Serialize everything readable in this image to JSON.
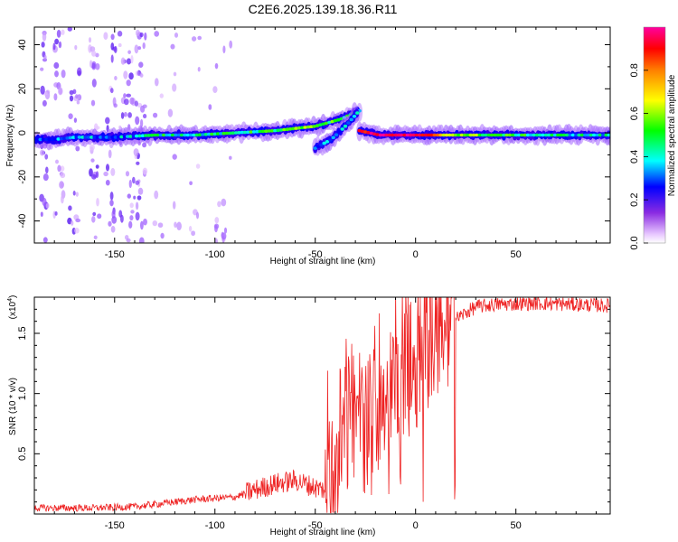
{
  "title": "C2E6.2025.139.18.36.R11",
  "colors": {
    "snr_line": "#ee2222",
    "frame": "#000000",
    "background": "#ffffff"
  },
  "chart_data": [
    {
      "type": "heatmap",
      "name": "spectrogram",
      "xlabel": "Height of straight line (km)",
      "ylabel": "Frequency (Hz)",
      "xlim": [
        -190,
        97
      ],
      "ylim": [
        -50,
        48
      ],
      "x_ticks": [
        -150,
        -100,
        -50,
        0,
        50
      ],
      "x_tick_labels": [
        "-150",
        "-100",
        "-50",
        "0",
        "50"
      ],
      "y_ticks": [
        -40,
        -20,
        0,
        20,
        40
      ],
      "y_tick_labels": [
        "-40",
        "-20",
        "0",
        "20",
        "40"
      ],
      "colormap": [
        "#e8c8ff",
        "#a060ff",
        "#4400ee",
        "#0000ff",
        "#00ffff",
        "#00ff00",
        "#ffff00",
        "#ff0000",
        "#ff00a0"
      ],
      "colorbar": {
        "label": "Normalized spectral amplitude",
        "range": [
          0.0,
          1.0
        ],
        "ticks": [
          0.0,
          0.2,
          0.4,
          0.6,
          0.8
        ],
        "tick_labels": [
          "0.0",
          "0.2",
          "0.4",
          "0.6",
          "0.8"
        ]
      },
      "ridges": [
        {
          "description": "main",
          "points": [
            {
              "x": -190,
              "y": -3,
              "amp": 0.25
            },
            {
              "x": -180,
              "y": -3,
              "amp": 0.3
            },
            {
              "x": -170,
              "y": -2,
              "amp": 0.35
            },
            {
              "x": -150,
              "y": -2,
              "amp": 0.35
            },
            {
              "x": -130,
              "y": -1,
              "amp": 0.45
            },
            {
              "x": -110,
              "y": -1,
              "amp": 0.45
            },
            {
              "x": -90,
              "y": 0,
              "amp": 0.45
            },
            {
              "x": -70,
              "y": 1,
              "amp": 0.5
            },
            {
              "x": -50,
              "y": 3,
              "amp": 0.55
            },
            {
              "x": -38,
              "y": 6,
              "amp": 0.5
            },
            {
              "x": -28,
              "y": 10,
              "amp": 0.45
            }
          ]
        },
        {
          "description": "branch",
          "points": [
            {
              "x": -50,
              "y": -7,
              "amp": 0.3
            },
            {
              "x": -42,
              "y": -3,
              "amp": 0.35
            },
            {
              "x": -35,
              "y": 3,
              "amp": 0.35
            },
            {
              "x": -29,
              "y": 9,
              "amp": 0.35
            }
          ]
        },
        {
          "description": "tail",
          "points": [
            {
              "x": -28,
              "y": 1,
              "amp": 0.85
            },
            {
              "x": -18,
              "y": -1,
              "amp": 0.95
            },
            {
              "x": 0,
              "y": -1,
              "amp": 0.9
            },
            {
              "x": 10,
              "y": -1,
              "amp": 0.7
            },
            {
              "x": 30,
              "y": -1,
              "amp": 0.55
            },
            {
              "x": 60,
              "y": -1,
              "amp": 0.45
            },
            {
              "x": 97,
              "y": -1,
              "amp": 0.4
            }
          ]
        }
      ]
    },
    {
      "type": "line",
      "name": "snr",
      "xlabel": "Height of straight line (km)",
      "ylabel": "SNR (10 * v/v)",
      "y_scale_label": "(x10",
      "y_scale_exponent": "4",
      "xlim": [
        -190,
        97
      ],
      "ylim": [
        0,
        1.8
      ],
      "x_ticks": [
        -150,
        -100,
        -50,
        0,
        50
      ],
      "x_tick_labels": [
        "-150",
        "-100",
        "-50",
        "0",
        "50"
      ],
      "y_ticks": [
        0.5,
        1.0,
        1.5
      ],
      "y_tick_labels": [
        "0.5",
        "1.0",
        "1.5"
      ],
      "envelope": [
        {
          "x": -190,
          "y": 0.05
        },
        {
          "x": -160,
          "y": 0.05
        },
        {
          "x": -140,
          "y": 0.06
        },
        {
          "x": -130,
          "y": 0.08
        },
        {
          "x": -120,
          "y": 0.1
        },
        {
          "x": -110,
          "y": 0.12
        },
        {
          "x": -100,
          "y": 0.13
        },
        {
          "x": -90,
          "y": 0.14
        },
        {
          "x": -80,
          "y": 0.2
        },
        {
          "x": -70,
          "y": 0.25
        },
        {
          "x": -60,
          "y": 0.28
        },
        {
          "x": -50,
          "y": 0.22
        },
        {
          "x": -45,
          "y": 0.2
        },
        {
          "x": -40,
          "y": 0.4
        },
        {
          "x": -35,
          "y": 0.7
        },
        {
          "x": -30,
          "y": 0.85
        },
        {
          "x": -25,
          "y": 0.7
        },
        {
          "x": -20,
          "y": 0.95
        },
        {
          "x": -10,
          "y": 1.05
        },
        {
          "x": 0,
          "y": 1.25
        },
        {
          "x": 10,
          "y": 1.5
        },
        {
          "x": 20,
          "y": 1.62
        },
        {
          "x": 30,
          "y": 1.72
        },
        {
          "x": 40,
          "y": 1.74
        },
        {
          "x": 60,
          "y": 1.75
        },
        {
          "x": 97,
          "y": 1.73
        }
      ]
    }
  ]
}
